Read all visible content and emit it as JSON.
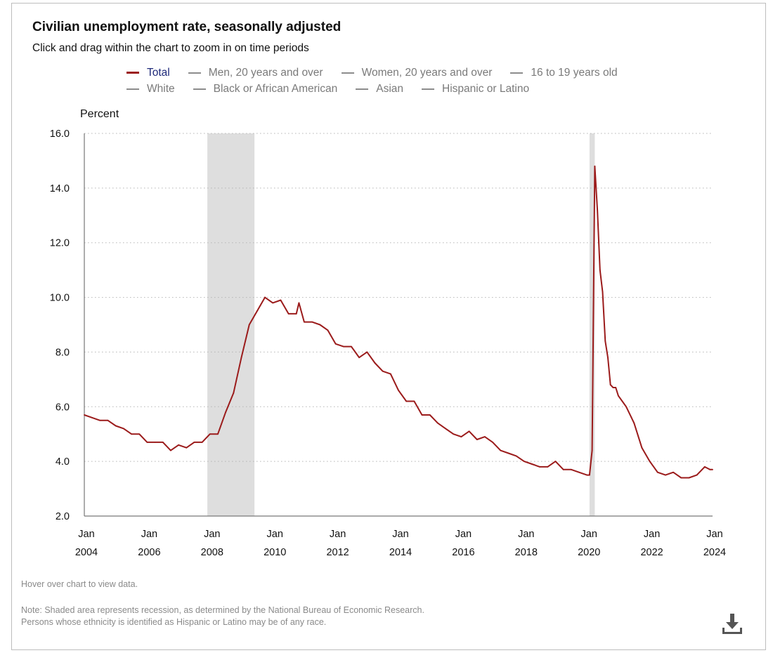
{
  "header": {
    "title": "Civilian unemployment rate, seasonally adjusted",
    "subtitle": "Click and drag within the chart to zoom in on time periods"
  },
  "legend": {
    "row1": [
      {
        "label": "Total",
        "active": true
      },
      {
        "label": "Men, 20 years and over",
        "active": false
      },
      {
        "label": "Women, 20 years and over",
        "active": false
      },
      {
        "label": "16 to 19 years old",
        "active": false
      }
    ],
    "row2": [
      {
        "label": "White",
        "active": false
      },
      {
        "label": "Black or African American",
        "active": false
      },
      {
        "label": "Asian",
        "active": false
      },
      {
        "label": "Hispanic or Latino",
        "active": false
      }
    ]
  },
  "footer": {
    "hover_hint": "Hover over chart to view data.",
    "note_line1": "Note: Shaded area represents recession, as determined by the National Bureau of Economic Research.",
    "note_line2": "Persons whose ethnicity is identified as Hispanic or Latino may be of any race."
  },
  "icons": {
    "download": "download-icon"
  },
  "colors": {
    "series": "#9b1b1b",
    "recession": "#dedede",
    "legend_active_text": "#1f2a7a",
    "legend_inactive": "#8c8c8c"
  },
  "chart_data": {
    "type": "line",
    "title": "Civilian unemployment rate, seasonally adjusted",
    "ylabel": "Percent",
    "ylim": [
      2.0,
      16.0
    ],
    "yticks": [
      "2.0",
      "4.0",
      "6.0",
      "8.0",
      "10.0",
      "12.0",
      "14.0",
      "16.0"
    ],
    "xlim": [
      "2004-01",
      "2024-01"
    ],
    "xticks": [
      {
        "month": "Jan",
        "year": "2004"
      },
      {
        "month": "Jan",
        "year": "2006"
      },
      {
        "month": "Jan",
        "year": "2008"
      },
      {
        "month": "Jan",
        "year": "2010"
      },
      {
        "month": "Jan",
        "year": "2012"
      },
      {
        "month": "Jan",
        "year": "2014"
      },
      {
        "month": "Jan",
        "year": "2016"
      },
      {
        "month": "Jan",
        "year": "2018"
      },
      {
        "month": "Jan",
        "year": "2020"
      },
      {
        "month": "Jan",
        "year": "2022"
      },
      {
        "month": "Jan",
        "year": "2024"
      }
    ],
    "grid": "horizontal dotted",
    "recessions": [
      {
        "start": "2007-12",
        "end": "2009-06"
      },
      {
        "start": "2020-02",
        "end": "2020-04"
      }
    ],
    "series": [
      {
        "name": "Total",
        "color": "#9b1b1b",
        "points": [
          [
            "2004-01",
            5.7
          ],
          [
            "2004-04",
            5.6
          ],
          [
            "2004-07",
            5.5
          ],
          [
            "2004-10",
            5.5
          ],
          [
            "2005-01",
            5.3
          ],
          [
            "2005-04",
            5.2
          ],
          [
            "2005-07",
            5.0
          ],
          [
            "2005-10",
            5.0
          ],
          [
            "2006-01",
            4.7
          ],
          [
            "2006-04",
            4.7
          ],
          [
            "2006-07",
            4.7
          ],
          [
            "2006-10",
            4.4
          ],
          [
            "2007-01",
            4.6
          ],
          [
            "2007-04",
            4.5
          ],
          [
            "2007-07",
            4.7
          ],
          [
            "2007-10",
            4.7
          ],
          [
            "2008-01",
            5.0
          ],
          [
            "2008-04",
            5.0
          ],
          [
            "2008-07",
            5.8
          ],
          [
            "2008-10",
            6.5
          ],
          [
            "2009-01",
            7.8
          ],
          [
            "2009-04",
            9.0
          ],
          [
            "2009-07",
            9.5
          ],
          [
            "2009-10",
            10.0
          ],
          [
            "2010-01",
            9.8
          ],
          [
            "2010-04",
            9.9
          ],
          [
            "2010-07",
            9.4
          ],
          [
            "2010-10",
            9.4
          ],
          [
            "2010-11",
            9.8
          ],
          [
            "2011-01",
            9.1
          ],
          [
            "2011-04",
            9.1
          ],
          [
            "2011-07",
            9.0
          ],
          [
            "2011-10",
            8.8
          ],
          [
            "2012-01",
            8.3
          ],
          [
            "2012-04",
            8.2
          ],
          [
            "2012-07",
            8.2
          ],
          [
            "2012-10",
            7.8
          ],
          [
            "2013-01",
            8.0
          ],
          [
            "2013-04",
            7.6
          ],
          [
            "2013-07",
            7.3
          ],
          [
            "2013-10",
            7.2
          ],
          [
            "2014-01",
            6.6
          ],
          [
            "2014-04",
            6.2
          ],
          [
            "2014-07",
            6.2
          ],
          [
            "2014-10",
            5.7
          ],
          [
            "2015-01",
            5.7
          ],
          [
            "2015-04",
            5.4
          ],
          [
            "2015-07",
            5.2
          ],
          [
            "2015-10",
            5.0
          ],
          [
            "2016-01",
            4.9
          ],
          [
            "2016-04",
            5.1
          ],
          [
            "2016-07",
            4.8
          ],
          [
            "2016-10",
            4.9
          ],
          [
            "2017-01",
            4.7
          ],
          [
            "2017-04",
            4.4
          ],
          [
            "2017-07",
            4.3
          ],
          [
            "2017-10",
            4.2
          ],
          [
            "2018-01",
            4.0
          ],
          [
            "2018-04",
            3.9
          ],
          [
            "2018-07",
            3.8
          ],
          [
            "2018-10",
            3.8
          ],
          [
            "2019-01",
            4.0
          ],
          [
            "2019-04",
            3.7
          ],
          [
            "2019-07",
            3.7
          ],
          [
            "2019-10",
            3.6
          ],
          [
            "2020-01",
            3.5
          ],
          [
            "2020-02",
            3.5
          ],
          [
            "2020-03",
            4.4
          ],
          [
            "2020-04",
            14.8
          ],
          [
            "2020-05",
            13.2
          ],
          [
            "2020-06",
            11.0
          ],
          [
            "2020-07",
            10.2
          ],
          [
            "2020-08",
            8.4
          ],
          [
            "2020-09",
            7.8
          ],
          [
            "2020-10",
            6.8
          ],
          [
            "2020-11",
            6.7
          ],
          [
            "2020-12",
            6.7
          ],
          [
            "2021-01",
            6.4
          ],
          [
            "2021-04",
            6.0
          ],
          [
            "2021-07",
            5.4
          ],
          [
            "2021-10",
            4.5
          ],
          [
            "2022-01",
            4.0
          ],
          [
            "2022-04",
            3.6
          ],
          [
            "2022-07",
            3.5
          ],
          [
            "2022-10",
            3.6
          ],
          [
            "2023-01",
            3.4
          ],
          [
            "2023-04",
            3.4
          ],
          [
            "2023-07",
            3.5
          ],
          [
            "2023-10",
            3.8
          ],
          [
            "2023-12",
            3.7
          ],
          [
            "2024-01",
            3.7
          ]
        ]
      }
    ]
  }
}
